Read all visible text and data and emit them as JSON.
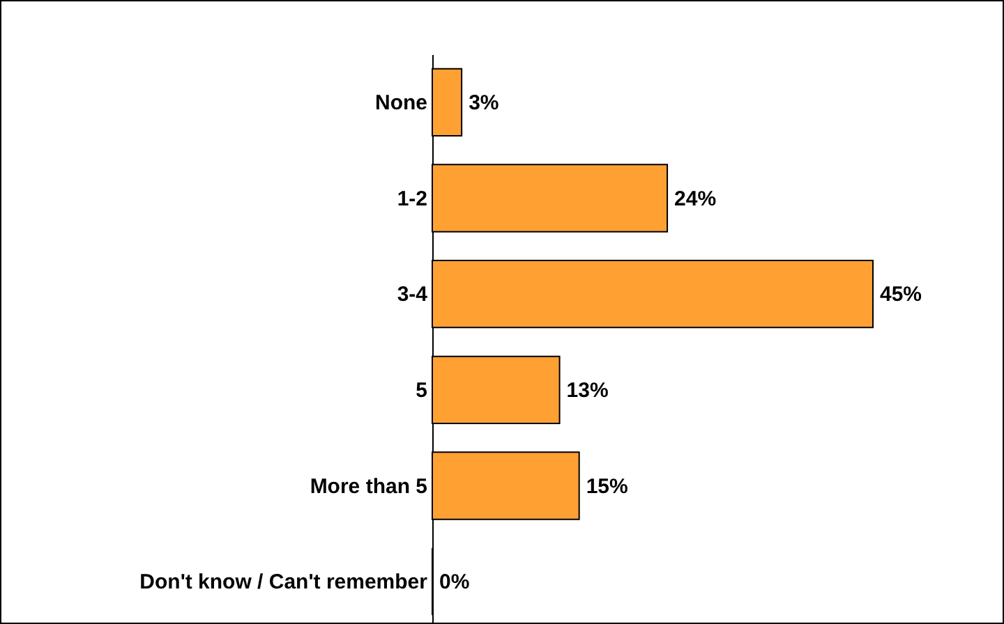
{
  "chart_data": {
    "type": "bar",
    "orientation": "horizontal",
    "categories": [
      "None",
      "1-2",
      "3-4",
      "5",
      "More than 5",
      "Don't know / Can't remember"
    ],
    "values": [
      3,
      24,
      45,
      13,
      15,
      0
    ],
    "value_labels": [
      "3%",
      "24%",
      "45%",
      "13%",
      "15%",
      "0%"
    ],
    "color": "#ffa033"
  }
}
